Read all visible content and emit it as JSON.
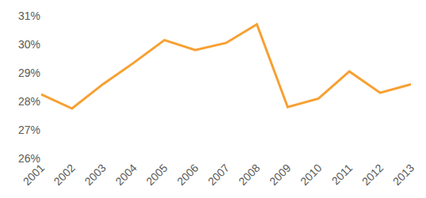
{
  "chart_data": {
    "type": "line",
    "categories": [
      "2001",
      "2002",
      "2003",
      "2004",
      "2005",
      "2006",
      "2007",
      "2008",
      "2009",
      "2010",
      "2011",
      "2012",
      "2013"
    ],
    "values": [
      28.25,
      27.75,
      28.6,
      29.35,
      30.15,
      29.8,
      30.05,
      30.7,
      27.8,
      28.1,
      29.05,
      28.3,
      28.6
    ],
    "color": "#f7a032",
    "ylim": [
      26,
      31
    ],
    "yticks": [
      {
        "value": 26,
        "label": "26%"
      },
      {
        "value": 27,
        "label": "27%"
      },
      {
        "value": 28,
        "label": "28%"
      },
      {
        "value": 29,
        "label": "29%"
      },
      {
        "value": 30,
        "label": "30%"
      },
      {
        "value": 31,
        "label": "31%"
      }
    ],
    "grid": false
  }
}
